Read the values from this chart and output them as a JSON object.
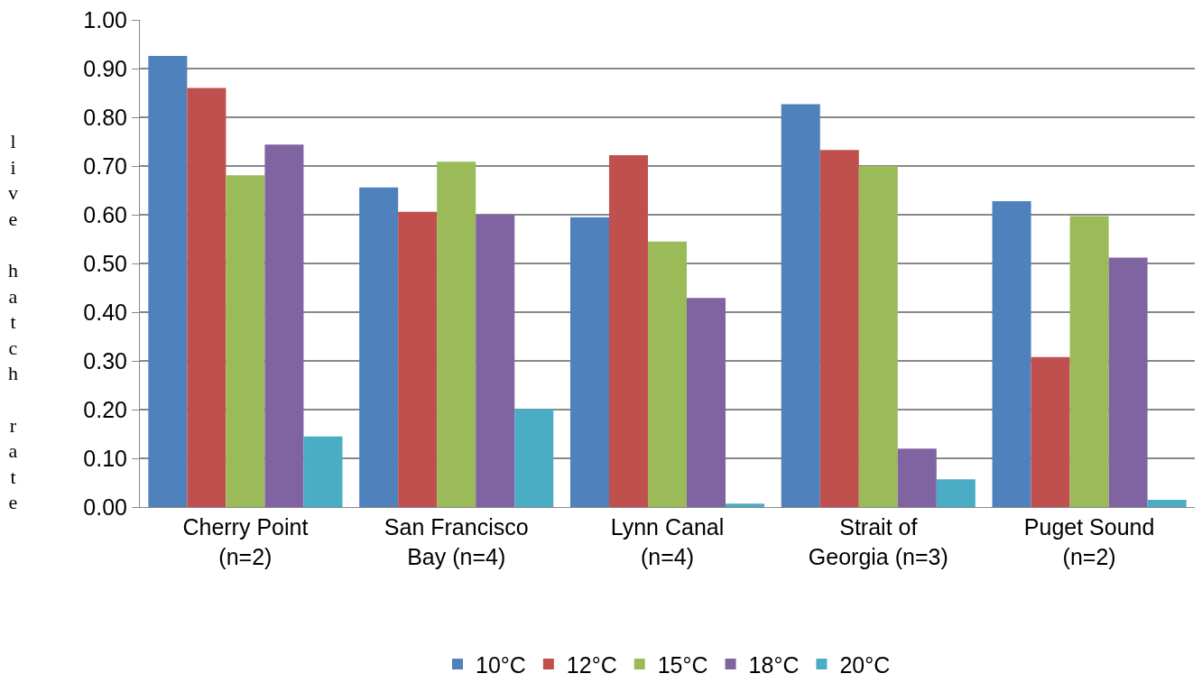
{
  "chart_data": {
    "type": "bar",
    "ylabel": "live hatch rate",
    "categories": [
      "Cherry Point\n(n=2)",
      "San Francisco\nBay (n=4)",
      "Lynn Canal\n(n=4)",
      "Strait of\nGeorgia (n=3)",
      "Puget Sound\n(n=2)"
    ],
    "series": [
      {
        "name": "10°C",
        "color": "#4f81bd",
        "values": [
          0.926,
          0.656,
          0.595,
          0.827,
          0.628
        ]
      },
      {
        "name": "12°C",
        "color": "#c0504d",
        "values": [
          0.86,
          0.606,
          0.722,
          0.733,
          0.308
        ]
      },
      {
        "name": "15°C",
        "color": "#9bbb59",
        "values": [
          0.681,
          0.709,
          0.545,
          0.7,
          0.597
        ]
      },
      {
        "name": "18°C",
        "color": "#8064a2",
        "values": [
          0.744,
          0.6,
          0.429,
          0.12,
          0.512
        ]
      },
      {
        "name": "20°C",
        "color": "#4bacc6",
        "values": [
          0.145,
          0.201,
          0.007,
          0.057,
          0.015
        ]
      }
    ],
    "ylim": [
      0,
      1
    ],
    "yticks": [
      {
        "value": 0,
        "label": "0.00"
      },
      {
        "value": 0.1,
        "label": "0.10"
      },
      {
        "value": 0.2,
        "label": "0.20"
      },
      {
        "value": 0.3,
        "label": "0.30"
      },
      {
        "value": 0.4,
        "label": "0.40"
      },
      {
        "value": 0.5,
        "label": "0.50"
      },
      {
        "value": 0.6,
        "label": "0.60"
      },
      {
        "value": 0.7,
        "label": "0.70"
      },
      {
        "value": 0.8,
        "label": "0.80"
      },
      {
        "value": 0.9,
        "label": "0.90"
      },
      {
        "value": 1,
        "label": "1.00"
      }
    ],
    "grid": "y",
    "legend": "bottom"
  }
}
